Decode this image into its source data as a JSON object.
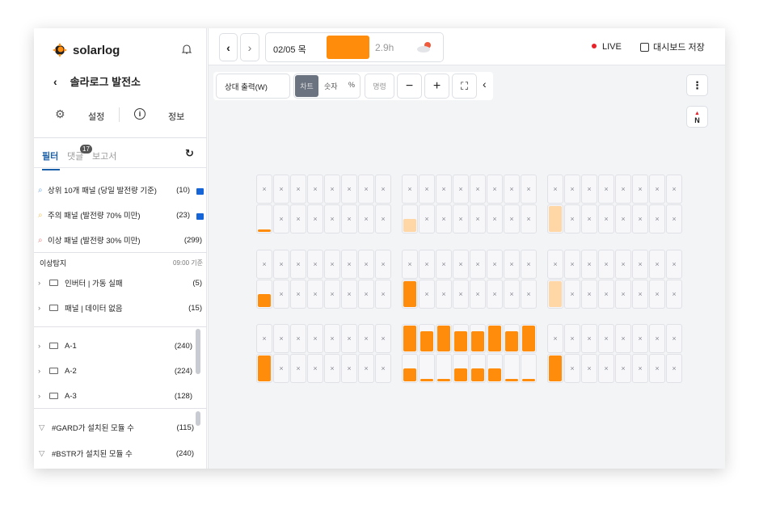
{
  "app": {
    "logo_text": "solarlog",
    "plant_name": "솔라로그 발전소",
    "settings_label": "설정",
    "info_label": "정보"
  },
  "tabs": [
    {
      "label": "필터",
      "active": true
    },
    {
      "label": "댓글",
      "badge": "17"
    },
    {
      "label": "보고서"
    }
  ],
  "filters": [
    {
      "label": "상위 10개 패널 (당일 발전량 기준)",
      "count": "(10)",
      "locked": true,
      "icon_color": "#6aa8e8"
    },
    {
      "label": "주의 패널 (발전량 70% 미만)",
      "count": "(23)",
      "locked": true,
      "icon_color": "#f2c25c"
    },
    {
      "label": "이상 패널 (발전량 30% 미만)",
      "count": "(299)",
      "locked": false,
      "icon_color": "#ee7f7f"
    }
  ],
  "anomaly": {
    "title": "이상탐지",
    "time": "09:00 기준",
    "items": [
      {
        "label": "인버터 | 가동 실패",
        "count": "(5)"
      },
      {
        "label": "패널 | 데이터 없음",
        "count": "(15)"
      }
    ]
  },
  "groups": [
    {
      "label": "A-1",
      "count": "(240)"
    },
    {
      "label": "A-2",
      "count": "(224)"
    },
    {
      "label": "A-3",
      "count": "(128)"
    }
  ],
  "tags": [
    {
      "label": "#GARD가 설치된 모듈 수",
      "count": "(115)"
    },
    {
      "label": "#BSTR가 설치된 모듈 수",
      "count": "(240)"
    }
  ],
  "topbar": {
    "date": "02/05 목",
    "hours": "2.9h",
    "live": "LIVE",
    "save": "대시보드 저장",
    "weather_icon": "cloud-sun-icon"
  },
  "toolbar": {
    "metric": "상대 출력(W)",
    "chart": "차트",
    "number": "숫자",
    "percent": "%",
    "command": "명령",
    "compass": "N"
  },
  "colors": {
    "accent": "#ff8c0a",
    "light": "#ffd6a6",
    "live": "#e8222a",
    "lock": "#1565d8",
    "active_tab": "#1b5fa8",
    "chart_toggle": "#6b7280"
  },
  "panel_grid": [
    [
      {
        "top": [
          null,
          null,
          null,
          null,
          null,
          null,
          null,
          null
        ],
        "bottom": [
          {
            "v": 0.1
          },
          null,
          null,
          null,
          null,
          null,
          null,
          null
        ]
      },
      {
        "top": [
          null,
          null,
          null,
          null,
          null,
          null,
          null,
          null
        ],
        "bottom": [
          {
            "v": 0.5,
            "light": true
          },
          null,
          null,
          null,
          null,
          null,
          null,
          null
        ]
      },
      {
        "top": [
          null,
          null,
          null,
          null,
          null,
          null,
          null,
          null
        ],
        "bottom": [
          {
            "v": 1,
            "light": true
          },
          null,
          null,
          null,
          null,
          null,
          null,
          null
        ]
      }
    ],
    [
      {
        "top": [
          null,
          null,
          null,
          null,
          null,
          null,
          null,
          null
        ],
        "bottom": [
          {
            "v": 0.5
          },
          null,
          null,
          null,
          null,
          null,
          null,
          null
        ]
      },
      {
        "top": [
          null,
          null,
          null,
          null,
          null,
          null,
          null,
          null
        ],
        "bottom": [
          {
            "v": 1
          },
          null,
          null,
          null,
          null,
          null,
          null,
          null
        ]
      },
      {
        "top": [
          null,
          null,
          null,
          null,
          null,
          null,
          null,
          null
        ],
        "bottom": [
          {
            "v": 1,
            "light": true
          },
          null,
          null,
          null,
          null,
          null,
          null,
          null
        ]
      }
    ],
    [
      {
        "top": [
          null,
          null,
          null,
          null,
          null,
          null,
          null,
          null
        ],
        "bottom": [
          {
            "v": 1
          },
          null,
          null,
          null,
          null,
          null,
          null,
          null
        ]
      },
      {
        "top": [
          {
            "v": 1
          },
          {
            "v": 0.78
          },
          {
            "v": 1
          },
          {
            "v": 0.78
          },
          {
            "v": 0.78
          },
          {
            "v": 1
          },
          {
            "v": 0.78
          },
          {
            "v": 1
          }
        ],
        "bottom": [
          {
            "v": 0.5
          },
          {
            "v": 0.1
          },
          {
            "v": 0.1
          },
          {
            "v": 0.5
          },
          {
            "v": 0.5
          },
          {
            "v": 0.5
          },
          {
            "v": 0.1
          },
          {
            "v": 0.1
          }
        ]
      },
      {
        "top": [
          null,
          null,
          null,
          null,
          null,
          null,
          null,
          null
        ],
        "bottom": [
          {
            "v": 1
          },
          null,
          null,
          null,
          null,
          null,
          null,
          null
        ]
      }
    ]
  ]
}
